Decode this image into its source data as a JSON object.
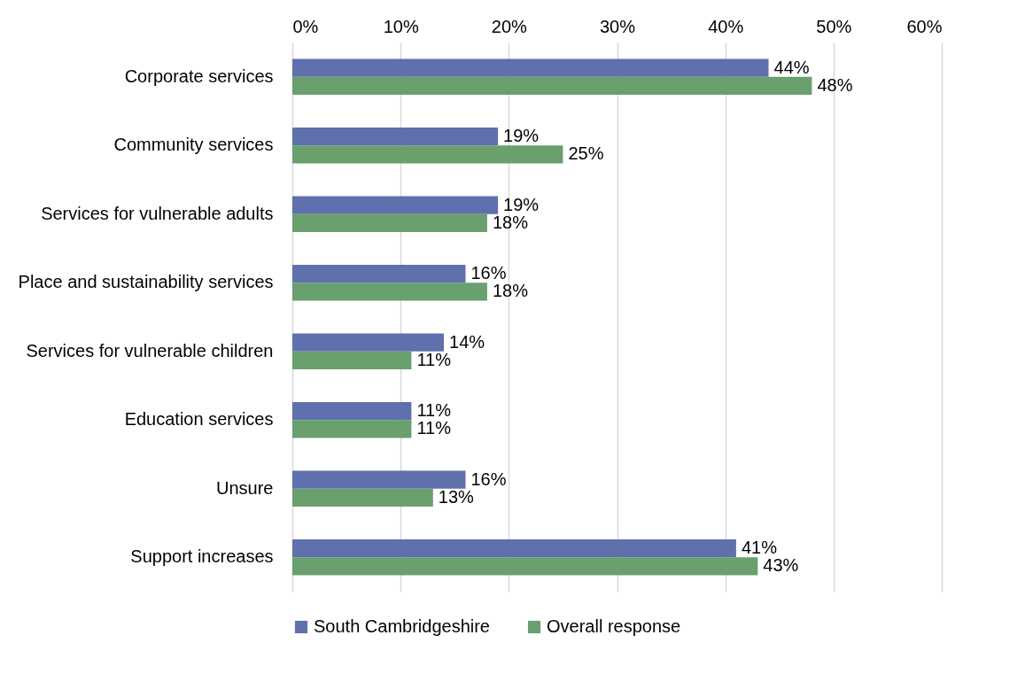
{
  "chart_data": {
    "type": "bar",
    "orientation": "horizontal",
    "categories": [
      "Corporate services",
      "Community services",
      "Services for vulnerable adults",
      "Place and sustainability services",
      "Services for vulnerable children",
      "Education services",
      "Unsure",
      "Support increases"
    ],
    "series": [
      {
        "name": "South Cambridgeshire",
        "color": "#5f70ad",
        "values": [
          44,
          19,
          19,
          16,
          14,
          11,
          16,
          41
        ],
        "value_labels": [
          "44%",
          "19%",
          "19%",
          "16%",
          "14%",
          "11%",
          "16%",
          "41%"
        ]
      },
      {
        "name": "Overall response",
        "color": "#6a9f6e",
        "values": [
          48,
          25,
          18,
          18,
          11,
          11,
          13,
          43
        ],
        "value_labels": [
          "48%",
          "25%",
          "18%",
          "18%",
          "11%",
          "11%",
          "13%",
          "43%"
        ]
      }
    ],
    "xlim": [
      0,
      60
    ],
    "xticks": [
      {
        "value": 0,
        "label": "0%"
      },
      {
        "value": 10,
        "label": "10%"
      },
      {
        "value": 20,
        "label": "20%"
      },
      {
        "value": 30,
        "label": "30%"
      },
      {
        "value": 40,
        "label": "40%"
      },
      {
        "value": 50,
        "label": "50%"
      },
      {
        "value": 60,
        "label": "60%"
      }
    ],
    "grid": "x",
    "legend": "bottom"
  }
}
